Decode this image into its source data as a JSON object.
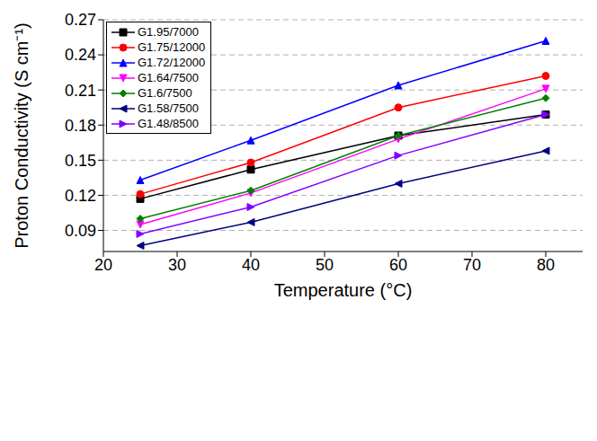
{
  "chart_data": {
    "type": "line",
    "x_label": "Temperature (°C)",
    "y_label": "Proton Conductivity (S cm⁻¹)",
    "x": [
      25,
      40,
      60,
      80
    ],
    "xlim": [
      20,
      85
    ],
    "xticks": [
      20,
      30,
      40,
      50,
      60,
      70,
      80
    ],
    "ylim": [
      0.072,
      0.27
    ],
    "yticks": [
      0.09,
      0.12,
      0.15,
      0.18,
      0.21,
      0.24,
      0.27
    ],
    "grid": true,
    "legend": "upper left",
    "series": [
      {
        "name": "G1.95/7000",
        "color": "#000000",
        "marker": "square",
        "values": [
          0.117,
          0.142,
          0.171,
          0.189
        ]
      },
      {
        "name": "G1.75/12000",
        "color": "#ff0000",
        "marker": "circle",
        "values": [
          0.121,
          0.148,
          0.195,
          0.222
        ]
      },
      {
        "name": "G1.72/12000",
        "color": "#0000ff",
        "marker": "triangle-up",
        "values": [
          0.133,
          0.167,
          0.214,
          0.252
        ]
      },
      {
        "name": "G1.64/7500",
        "color": "#ff00ff",
        "marker": "triangle-down",
        "values": [
          0.095,
          0.122,
          0.168,
          0.211
        ]
      },
      {
        "name": "G1.6/7500",
        "color": "#008000",
        "marker": "diamond",
        "values": [
          0.1,
          0.124,
          0.171,
          0.203
        ]
      },
      {
        "name": "G1.58/7500",
        "color": "#000080",
        "marker": "triangle-left",
        "values": [
          0.077,
          0.097,
          0.13,
          0.158
        ]
      },
      {
        "name": "G1.48/8500",
        "color": "#8000ff",
        "marker": "triangle-right",
        "values": [
          0.087,
          0.11,
          0.154,
          0.189
        ]
      }
    ]
  }
}
